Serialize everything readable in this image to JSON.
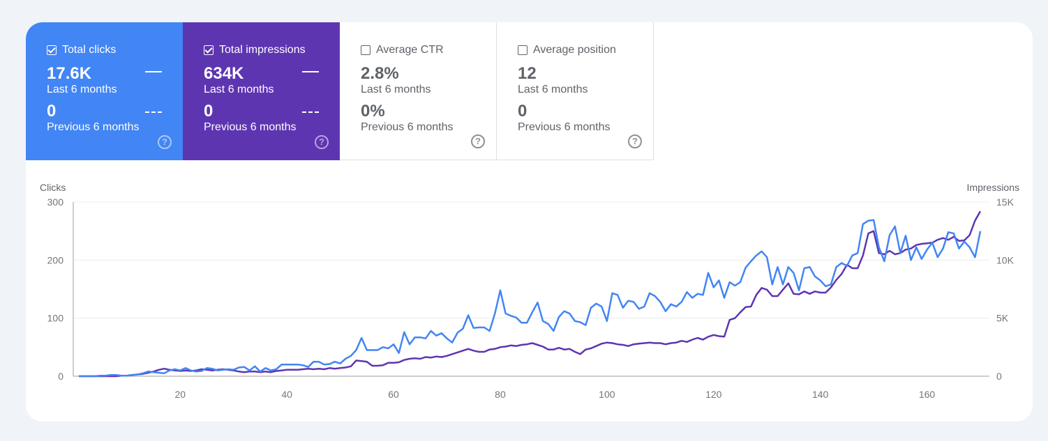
{
  "cards": [
    {
      "label": "Total clicks",
      "checked": true,
      "value": "17.6K",
      "period": "Last 6 months",
      "prev_value": "0",
      "prev_period": "Previous 6 months",
      "color": "#4285f4"
    },
    {
      "label": "Total impressions",
      "checked": true,
      "value": "634K",
      "period": "Last 6 months",
      "prev_value": "0",
      "prev_period": "Previous 6 months",
      "color": "#5e35b1"
    },
    {
      "label": "Average CTR",
      "checked": false,
      "value": "2.8%",
      "period": "Last 6 months",
      "prev_value": "0%",
      "prev_period": "Previous 6 months"
    },
    {
      "label": "Average position",
      "checked": false,
      "value": "12",
      "period": "Last 6 months",
      "prev_value": "0",
      "prev_period": "Previous 6 months"
    }
  ],
  "help_icon": "?",
  "chart_data": {
    "type": "line",
    "ylabel_left": "Clicks",
    "ylabel_right": "Impressions",
    "x_start": 1,
    "x_ticks": [
      20,
      40,
      60,
      80,
      100,
      120,
      140,
      160
    ],
    "ylim_left": [
      0,
      300
    ],
    "y_ticks_left": [
      0,
      100,
      200,
      300
    ],
    "y_tick_labels_left": [
      "0",
      "100",
      "200",
      "300"
    ],
    "ylim_right": [
      0,
      15000
    ],
    "y_ticks_right": [
      0,
      5000,
      10000,
      15000
    ],
    "y_tick_labels_right": [
      "0",
      "5K",
      "10K",
      "15K"
    ],
    "grid": true,
    "series": [
      {
        "axis": "left",
        "color": "#4285f4",
        "values": [
          0,
          0,
          0,
          0,
          1,
          1,
          2,
          2,
          1,
          1,
          2,
          3,
          5,
          8,
          7,
          6,
          5,
          10,
          12,
          10,
          14,
          10,
          8,
          9,
          14,
          13,
          10,
          11,
          12,
          11,
          15,
          16,
          10,
          17,
          8,
          14,
          10,
          12,
          20,
          20,
          20,
          20,
          19,
          16,
          25,
          25,
          20,
          21,
          25,
          22,
          30,
          35,
          45,
          66,
          45,
          45,
          45,
          50,
          48,
          55,
          40,
          76,
          55,
          67,
          67,
          65,
          78,
          70,
          74,
          65,
          58,
          75,
          82,
          105,
          83,
          84,
          84,
          78,
          108,
          148,
          108,
          104,
          101,
          92,
          92,
          110,
          127,
          95,
          90,
          78,
          102,
          112,
          108,
          95,
          93,
          88,
          118,
          125,
          120,
          95,
          143,
          140,
          118,
          130,
          128,
          116,
          120,
          143,
          138,
          128,
          112,
          124,
          120,
          128,
          145,
          135,
          142,
          140,
          178,
          153,
          165,
          135,
          162,
          156,
          162,
          187,
          198,
          208,
          215,
          205,
          158,
          188,
          158,
          188,
          178,
          148,
          186,
          188,
          172,
          165,
          155,
          158,
          188,
          195,
          190,
          208,
          212,
          262,
          268,
          269,
          222,
          198,
          243,
          258,
          212,
          242,
          200,
          222,
          202,
          218,
          230,
          205,
          220,
          248,
          246,
          220,
          232,
          222,
          205,
          250
        ]
      },
      {
        "axis": "right",
        "color": "#5e35b1",
        "values": [
          0,
          0,
          0,
          0,
          0,
          0,
          0,
          0,
          50,
          50,
          100,
          150,
          200,
          300,
          400,
          550,
          650,
          550,
          500,
          450,
          500,
          450,
          500,
          600,
          550,
          500,
          550,
          600,
          550,
          500,
          400,
          350,
          400,
          400,
          350,
          400,
          350,
          450,
          500,
          550,
          550,
          550,
          600,
          650,
          600,
          650,
          600,
          700,
          650,
          700,
          750,
          850,
          1350,
          1300,
          1250,
          900,
          900,
          950,
          1150,
          1150,
          1200,
          1400,
          1500,
          1550,
          1500,
          1650,
          1600,
          1700,
          1650,
          1750,
          1900,
          2050,
          2200,
          2350,
          2200,
          2100,
          2100,
          2300,
          2350,
          2500,
          2550,
          2650,
          2600,
          2700,
          2750,
          2850,
          2700,
          2550,
          2300,
          2300,
          2450,
          2300,
          2350,
          2100,
          1900,
          2300,
          2400,
          2600,
          2800,
          2900,
          2850,
          2750,
          2700,
          2600,
          2750,
          2800,
          2850,
          2900,
          2850,
          2850,
          2750,
          2850,
          2900,
          3050,
          2950,
          3150,
          3300,
          3150,
          3400,
          3550,
          3450,
          3400,
          4850,
          5000,
          5500,
          5950,
          6000,
          7000,
          7600,
          7450,
          6900,
          6900,
          7450,
          8000,
          7100,
          7050,
          7300,
          7100,
          7300,
          7200,
          7200,
          7650,
          8300,
          8800,
          9600,
          9300,
          9300,
          10400,
          12300,
          12500,
          10600,
          10500,
          10800,
          10500,
          10600,
          10900,
          11000,
          11300,
          11400,
          11450,
          11500,
          11750,
          11900,
          11750,
          12000,
          11650,
          11700,
          12150,
          13400,
          14200
        ]
      }
    ]
  }
}
